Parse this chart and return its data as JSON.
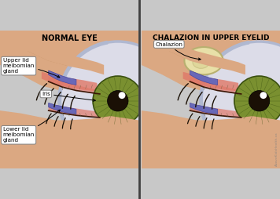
{
  "bg_color": "#c8c8c8",
  "panel_bg": "#e8e8e8",
  "title_left": "NORMAL EYE",
  "title_right": "CHALAZION IN UPPER EYELID",
  "title_fontsize": 7.0,
  "label_upper_lid": "Upper lid\nmeibomian\ngland",
  "label_iris": "Iris",
  "label_lower_lid": "Lower lid\nmeibomian\ngland",
  "label_chalazion": "Chalazion",
  "skin_color": "#dba882",
  "skin_med": "#c8956a",
  "skin_dark": "#b07850",
  "pink_tissue": "#e07868",
  "iris_outer": "#7a9030",
  "iris_mid": "#5a7020",
  "iris_dark": "#3a5010",
  "pupil_dark": "#1a1005",
  "sclera": "#dcdce8",
  "meibomian_col": "#6868b8",
  "meibomian_edge": "#4848a0",
  "chalazion_fill": "#e8e0a8",
  "chalazion_edge": "#b8b070",
  "chalazion_inner_fill": "#d8d090",
  "lash_col": "#1a1005",
  "globe_edge": "#b0b8d0",
  "divider": "#404040",
  "label_bg": "#ffffff",
  "label_border": "#808080",
  "watermark": "AboveKidsHealth.ca",
  "tissue_line_col": "#706040",
  "waterline_col": "#888860"
}
